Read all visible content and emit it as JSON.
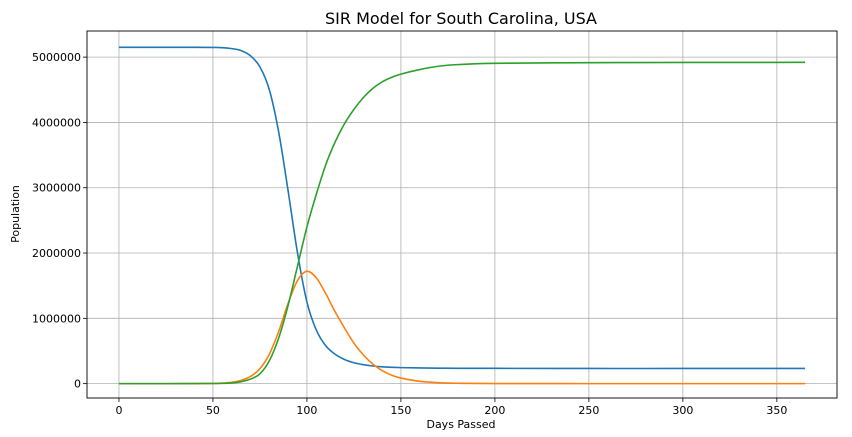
{
  "chart_data": {
    "type": "line",
    "title": "SIR Model for South Carolina, USA",
    "xlabel": "Days Passed",
    "ylabel": "Population",
    "xlim": [
      -17,
      382
    ],
    "ylim": [
      -220000,
      5400000
    ],
    "xticks": [
      0,
      50,
      100,
      150,
      200,
      250,
      300,
      350
    ],
    "yticks": [
      0,
      1000000,
      2000000,
      3000000,
      4000000,
      5000000
    ],
    "xtick_labels": [
      "0",
      "50",
      "100",
      "150",
      "200",
      "250",
      "300",
      "350"
    ],
    "ytick_labels": [
      "0",
      "1000000",
      "2000000",
      "3000000",
      "4000000",
      "5000000"
    ],
    "grid": true,
    "x": [
      0,
      20,
      40,
      50,
      55,
      60,
      65,
      70,
      75,
      80,
      85,
      90,
      95,
      100,
      105,
      110,
      115,
      120,
      125,
      130,
      135,
      140,
      145,
      150,
      160,
      170,
      180,
      200,
      250,
      300,
      365
    ],
    "series": [
      {
        "color": "#1f77b4",
        "values": [
          5150000,
          5150000,
          5150000,
          5148000,
          5145000,
          5130000,
          5100000,
          5020000,
          4850000,
          4500000,
          3850000,
          2950000,
          2000000,
          1250000,
          820000,
          580000,
          450000,
          370000,
          320000,
          290000,
          270000,
          258000,
          250000,
          245000,
          240000,
          237000,
          235000,
          234000,
          232000,
          232000,
          232000
        ]
      },
      {
        "color": "#ff7f0e",
        "values": [
          0,
          0,
          1000,
          3000,
          8000,
          20000,
          50000,
          110000,
          230000,
          450000,
          800000,
          1230000,
          1580000,
          1720000,
          1620000,
          1380000,
          1100000,
          850000,
          620000,
          440000,
          300000,
          200000,
          130000,
          85000,
          35000,
          15000,
          6000,
          1500,
          200,
          0,
          0
        ]
      },
      {
        "color": "#2ca02c",
        "values": [
          0,
          0,
          1000,
          2000,
          4000,
          10000,
          30000,
          70000,
          150000,
          350000,
          700000,
          1200000,
          1800000,
          2400000,
          2900000,
          3350000,
          3700000,
          3980000,
          4200000,
          4380000,
          4520000,
          4620000,
          4690000,
          4740000,
          4810000,
          4860000,
          4885000,
          4905000,
          4915000,
          4918000,
          4920000
        ]
      }
    ]
  }
}
